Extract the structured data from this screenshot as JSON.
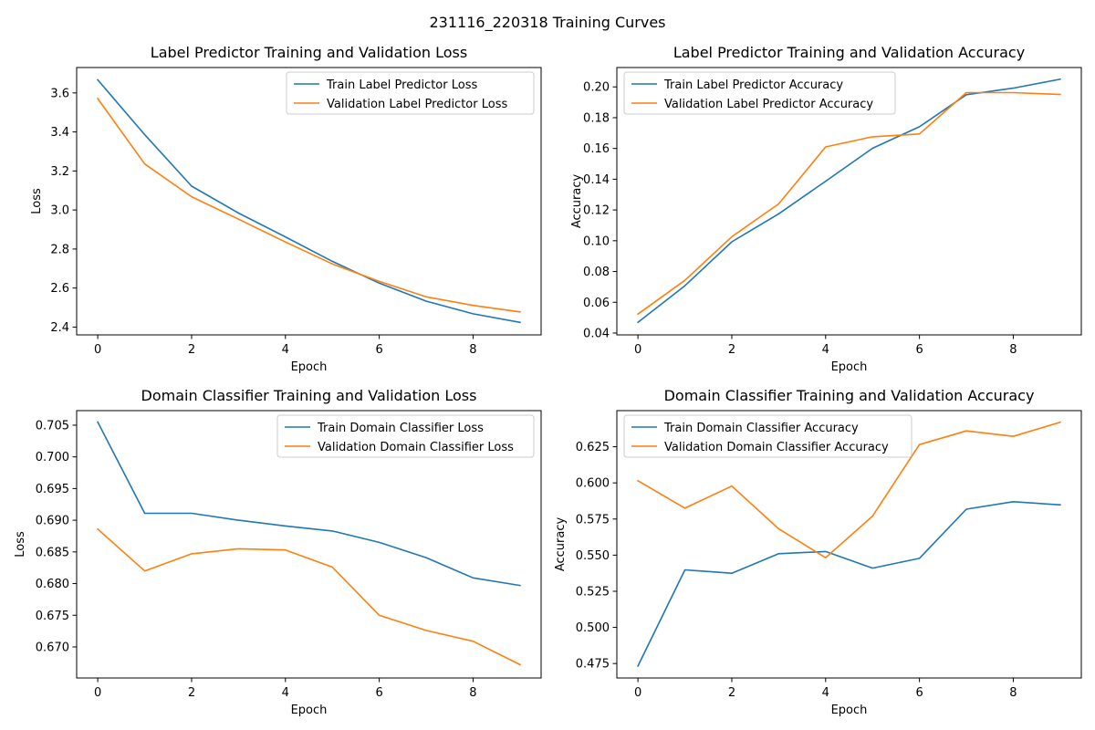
{
  "figure": {
    "suptitle": "231116_220318 Training Curves"
  },
  "chart_data": [
    {
      "type": "line",
      "title": "Label Predictor Training and Validation Loss",
      "xlabel": "Epoch",
      "ylabel": "Loss",
      "xlim": [
        -0.45,
        9.45
      ],
      "ylim": [
        2.36,
        3.73
      ],
      "xticks": [
        0,
        2,
        4,
        6,
        8
      ],
      "xtick_labels": [
        "0",
        "2",
        "4",
        "6",
        "8"
      ],
      "yticks": [
        2.4,
        2.6,
        2.8,
        3.0,
        3.2,
        3.4,
        3.6
      ],
      "ytick_labels": [
        "2.4",
        "2.6",
        "2.8",
        "3.0",
        "3.2",
        "3.4",
        "3.6"
      ],
      "legend_position": "upper right",
      "x": [
        0,
        1,
        2,
        3,
        4,
        5,
        6,
        7,
        8,
        9
      ],
      "series": [
        {
          "name": "Train Label Predictor Loss",
          "color": "#1f77b4",
          "values": [
            3.667,
            3.386,
            3.122,
            2.984,
            2.862,
            2.737,
            2.625,
            2.533,
            2.468,
            2.424
          ]
        },
        {
          "name": "Validation Label Predictor Loss",
          "color": "#ff7f0e",
          "values": [
            3.571,
            3.236,
            3.068,
            2.953,
            2.836,
            2.724,
            2.634,
            2.555,
            2.511,
            2.478
          ]
        }
      ]
    },
    {
      "type": "line",
      "title": "Label Predictor Training and Validation Accuracy",
      "xlabel": "Epoch",
      "ylabel": "Accuracy",
      "xlim": [
        -0.45,
        9.45
      ],
      "ylim": [
        0.0388,
        0.2126
      ],
      "xticks": [
        0,
        2,
        4,
        6,
        8
      ],
      "xtick_labels": [
        "0",
        "2",
        "4",
        "6",
        "8"
      ],
      "yticks": [
        0.04,
        0.06,
        0.08,
        0.1,
        0.12,
        0.14,
        0.16,
        0.18,
        0.2
      ],
      "ytick_labels": [
        "0.04",
        "0.06",
        "0.08",
        "0.10",
        "0.12",
        "0.14",
        "0.16",
        "0.18",
        "0.20"
      ],
      "legend_position": "upper left",
      "x": [
        0,
        1,
        2,
        3,
        4,
        5,
        6,
        7,
        8,
        9
      ],
      "series": [
        {
          "name": "Train Label Predictor Accuracy",
          "color": "#1f77b4",
          "values": [
            0.047,
            0.0708,
            0.0993,
            0.1175,
            0.1387,
            0.1601,
            0.1741,
            0.1949,
            0.1992,
            0.205
          ]
        },
        {
          "name": "Validation Label Predictor Accuracy",
          "color": "#ff7f0e",
          "values": [
            0.0523,
            0.0743,
            0.1026,
            0.124,
            0.161,
            0.1676,
            0.1694,
            0.1963,
            0.1963,
            0.1951
          ]
        }
      ]
    },
    {
      "type": "line",
      "title": "Domain Classifier Training and Validation Loss",
      "xlabel": "Epoch",
      "ylabel": "Loss",
      "xlim": [
        -0.45,
        9.45
      ],
      "ylim": [
        0.6651,
        0.7073
      ],
      "xticks": [
        0,
        2,
        4,
        6,
        8
      ],
      "xtick_labels": [
        "0",
        "2",
        "4",
        "6",
        "8"
      ],
      "yticks": [
        0.67,
        0.675,
        0.68,
        0.685,
        0.69,
        0.695,
        0.7,
        0.705
      ],
      "ytick_labels": [
        "0.670",
        "0.675",
        "0.680",
        "0.685",
        "0.690",
        "0.695",
        "0.700",
        "0.705"
      ],
      "legend_position": "upper right",
      "x": [
        0,
        1,
        2,
        3,
        4,
        5,
        6,
        7,
        8,
        9
      ],
      "series": [
        {
          "name": "Train Domain Classifier Loss",
          "color": "#1f77b4",
          "values": [
            0.7055,
            0.6911,
            0.6911,
            0.69,
            0.6891,
            0.6883,
            0.6865,
            0.6841,
            0.6809,
            0.6797
          ]
        },
        {
          "name": "Validation Domain Classifier Loss",
          "color": "#ff7f0e",
          "values": [
            0.6886,
            0.682,
            0.6847,
            0.6855,
            0.6853,
            0.6826,
            0.675,
            0.6726,
            0.6709,
            0.6672
          ]
        }
      ]
    },
    {
      "type": "line",
      "title": "Domain Classifier Training and Validation Accuracy",
      "xlabel": "Epoch",
      "ylabel": "Accuracy",
      "xlim": [
        -0.45,
        9.45
      ],
      "ylim": [
        0.465,
        0.65
      ],
      "xticks": [
        0,
        2,
        4,
        6,
        8
      ],
      "xtick_labels": [
        "0",
        "2",
        "4",
        "6",
        "8"
      ],
      "yticks": [
        0.475,
        0.5,
        0.525,
        0.55,
        0.575,
        0.6,
        0.625
      ],
      "ytick_labels": [
        "0.475",
        "0.500",
        "0.525",
        "0.550",
        "0.575",
        "0.600",
        "0.625"
      ],
      "legend_position": "upper left",
      "x": [
        0,
        1,
        2,
        3,
        4,
        5,
        6,
        7,
        8,
        9
      ],
      "series": [
        {
          "name": "Train Domain Classifier Accuracy",
          "color": "#1f77b4",
          "values": [
            0.4733,
            0.5398,
            0.5375,
            0.551,
            0.5525,
            0.541,
            0.5478,
            0.5818,
            0.587,
            0.5848
          ]
        },
        {
          "name": "Validation Domain Classifier Accuracy",
          "color": "#ff7f0e",
          "values": [
            0.6015,
            0.5825,
            0.5978,
            0.5682,
            0.5482,
            0.577,
            0.6265,
            0.636,
            0.6322,
            0.642
          ]
        }
      ]
    }
  ]
}
